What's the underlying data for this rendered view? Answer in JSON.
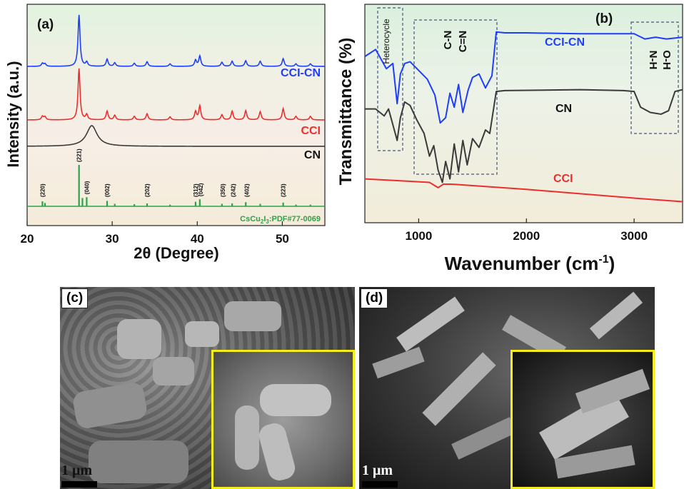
{
  "panel_labels": {
    "a": "(a)",
    "b": "(b)",
    "c": "(c)",
    "d": "(d)"
  },
  "colors": {
    "blue": "#1f3dff",
    "red": "#ee2d2d",
    "black": "#3a3a3a",
    "green": "#2aa34a",
    "inset_border": "#f5ec1c"
  },
  "chart_data": [
    {
      "type": "line",
      "panel": "(a)",
      "xlabel": "2θ (Degree)",
      "ylabel": "Intensity (a.u.)",
      "xlim": [
        20,
        55
      ],
      "xticks": [
        "20",
        "30",
        "40",
        "50"
      ],
      "xtick_values": [
        20,
        30,
        40,
        50
      ],
      "series": [
        {
          "name": "CCI-CN",
          "color": "#1f3dff",
          "peaks": [
            [
              21.8,
              0.06
            ],
            [
              22.1,
              0.05
            ],
            [
              26.1,
              1.0
            ],
            [
              27.0,
              0.08
            ],
            [
              29.4,
              0.14
            ],
            [
              30.3,
              0.07
            ],
            [
              32.6,
              0.06
            ],
            [
              34.1,
              0.09
            ],
            [
              36.8,
              0.05
            ],
            [
              39.8,
              0.12
            ],
            [
              40.3,
              0.2
            ],
            [
              42.9,
              0.08
            ],
            [
              44.1,
              0.1
            ],
            [
              45.7,
              0.11
            ],
            [
              47.4,
              0.1
            ],
            [
              50.1,
              0.15
            ],
            [
              51.6,
              0.05
            ],
            [
              53.3,
              0.05
            ]
          ]
        },
        {
          "name": "CCI",
          "color": "#ee2d2d",
          "peaks": [
            [
              21.8,
              0.07
            ],
            [
              22.1,
              0.06
            ],
            [
              26.1,
              1.0
            ],
            [
              27.0,
              0.1
            ],
            [
              29.4,
              0.17
            ],
            [
              30.3,
              0.09
            ],
            [
              32.6,
              0.07
            ],
            [
              34.1,
              0.12
            ],
            [
              36.8,
              0.06
            ],
            [
              39.8,
              0.16
            ],
            [
              40.3,
              0.27
            ],
            [
              42.9,
              0.1
            ],
            [
              44.1,
              0.17
            ],
            [
              45.7,
              0.18
            ],
            [
              47.4,
              0.16
            ],
            [
              50.1,
              0.22
            ],
            [
              51.6,
              0.07
            ],
            [
              53.3,
              0.07
            ]
          ]
        },
        {
          "name": "CN",
          "color": "#3a3a3a",
          "peaks": [
            [
              27.6,
              1.0
            ]
          ]
        },
        {
          "name": "CsCu2I3:PDF#77-0069",
          "color": "#2aa34a",
          "sticks": [
            [
              21.8,
              0.12
            ],
            [
              22.1,
              0.08
            ],
            [
              26.1,
              1.0
            ],
            [
              26.5,
              0.2
            ],
            [
              27.0,
              0.22
            ],
            [
              29.4,
              0.13
            ],
            [
              30.3,
              0.06
            ],
            [
              32.6,
              0.05
            ],
            [
              34.1,
              0.07
            ],
            [
              36.8,
              0.04
            ],
            [
              39.8,
              0.11
            ],
            [
              40.3,
              0.17
            ],
            [
              42.9,
              0.06
            ],
            [
              44.1,
              0.07
            ],
            [
              45.7,
              0.1
            ],
            [
              47.4,
              0.06
            ],
            [
              50.1,
              0.09
            ],
            [
              51.6,
              0.04
            ],
            [
              53.3,
              0.04
            ]
          ]
        }
      ],
      "annotations": [
        {
          "text": "(220)",
          "x": 21.8
        },
        {
          "text": "(221)",
          "x": 26.1
        },
        {
          "text": "(040)",
          "x": 27.0
        },
        {
          "text": "(002)",
          "x": 29.4
        },
        {
          "text": "(202)",
          "x": 34.1
        },
        {
          "text": "(312)",
          "x": 39.8
        },
        {
          "text": "(042)",
          "x": 40.4
        },
        {
          "text": "(350)",
          "x": 43.0
        },
        {
          "text": "(242)",
          "x": 44.2
        },
        {
          "text": "(402)",
          "x": 45.8
        },
        {
          "text": "(223)",
          "x": 50.1
        }
      ],
      "series_labels": [
        "CCI-CN",
        "CCI",
        "CN"
      ],
      "reference_label": {
        "pre": "CsCu",
        "sub1": "2",
        "mid": "I",
        "sub2": "3",
        "post": ":PDF#77-0069"
      }
    },
    {
      "type": "line",
      "panel": "(b)",
      "xlabel": "Wavenumber (cm⁻¹)",
      "ylabel": "Transmittance (%)",
      "xlim": [
        500,
        3450
      ],
      "xticks": [
        "1000",
        "2000",
        "3000"
      ],
      "xtick_values": [
        1000,
        2000,
        3000
      ],
      "series": [
        {
          "name": "CCI-CN",
          "color": "#1f3dff",
          "points": [
            [
              500,
              0.82
            ],
            [
              600,
              0.86
            ],
            [
              700,
              0.75
            ],
            [
              760,
              0.78
            ],
            [
              800,
              0.55
            ],
            [
              830,
              0.72
            ],
            [
              870,
              0.78
            ],
            [
              920,
              0.79
            ],
            [
              1000,
              0.74
            ],
            [
              1080,
              0.69
            ],
            [
              1150,
              0.6
            ],
            [
              1200,
              0.44
            ],
            [
              1250,
              0.47
            ],
            [
              1290,
              0.61
            ],
            [
              1330,
              0.53
            ],
            [
              1370,
              0.66
            ],
            [
              1410,
              0.5
            ],
            [
              1460,
              0.63
            ],
            [
              1500,
              0.7
            ],
            [
              1560,
              0.72
            ],
            [
              1620,
              0.64
            ],
            [
              1680,
              0.71
            ],
            [
              1720,
              0.96
            ],
            [
              1800,
              0.955
            ],
            [
              2000,
              0.955
            ],
            [
              2500,
              0.95
            ],
            [
              2900,
              0.95
            ],
            [
              3000,
              0.95
            ],
            [
              3100,
              0.92
            ],
            [
              3200,
              0.93
            ],
            [
              3300,
              0.92
            ],
            [
              3450,
              0.93
            ]
          ]
        },
        {
          "name": "CN",
          "color": "#3a3a3a",
          "points": [
            [
              500,
              0.52
            ],
            [
              600,
              0.52
            ],
            [
              680,
              0.48
            ],
            [
              720,
              0.52
            ],
            [
              760,
              0.43
            ],
            [
              800,
              0.34
            ],
            [
              830,
              0.47
            ],
            [
              870,
              0.56
            ],
            [
              920,
              0.54
            ],
            [
              980,
              0.46
            ],
            [
              1050,
              0.38
            ],
            [
              1100,
              0.25
            ],
            [
              1140,
              0.31
            ],
            [
              1180,
              0.17
            ],
            [
              1220,
              0.1
            ],
            [
              1250,
              0.22
            ],
            [
              1290,
              0.12
            ],
            [
              1330,
              0.32
            ],
            [
              1370,
              0.16
            ],
            [
              1410,
              0.34
            ],
            [
              1450,
              0.2
            ],
            [
              1500,
              0.35
            ],
            [
              1560,
              0.3
            ],
            [
              1620,
              0.4
            ],
            [
              1660,
              0.38
            ],
            [
              1720,
              0.62
            ],
            [
              1800,
              0.625
            ],
            [
              2500,
              0.63
            ],
            [
              2900,
              0.625
            ],
            [
              3000,
              0.62
            ],
            [
              3060,
              0.53
            ],
            [
              3150,
              0.5
            ],
            [
              3250,
              0.49
            ],
            [
              3320,
              0.51
            ],
            [
              3380,
              0.62
            ],
            [
              3450,
              0.63
            ]
          ]
        },
        {
          "name": "CCI",
          "color": "#ee2d2d",
          "points": [
            [
              500,
              0.12
            ],
            [
              800,
              0.11
            ],
            [
              1100,
              0.1
            ],
            [
              1180,
              0.07
            ],
            [
              1230,
              0.09
            ],
            [
              1300,
              0.09
            ],
            [
              2000,
              0.06
            ],
            [
              3000,
              0.01
            ],
            [
              3450,
              -0.01
            ]
          ]
        }
      ],
      "box_labels": {
        "heterocycle": "Heterocycle",
        "cn": "C-N",
        "ceqn": "C=N",
        "nh": "N-H",
        "oh": "O-H"
      },
      "series_labels": [
        "CCI-CN",
        "CN",
        "CCI"
      ]
    }
  ],
  "sem": {
    "c": {
      "scale": "1 μm"
    },
    "d": {
      "scale": "1 μm"
    }
  }
}
